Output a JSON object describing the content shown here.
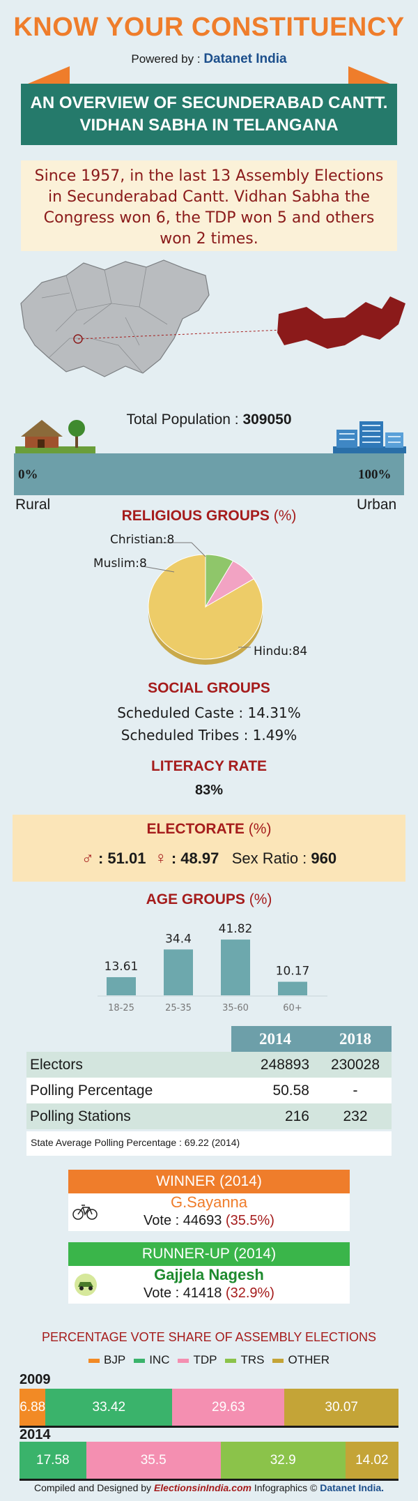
{
  "header": {
    "title": "KNOW YOUR CONSTITUENCY",
    "powered_prefix": "Powered by : ",
    "powered_brand": "Datanet India"
  },
  "banner": {
    "line1": "AN OVERVIEW OF SECUNDERABAD CANTT.",
    "line2": "VIDHAN SABHA IN TELANGANA"
  },
  "intro": "Since 1957, in the last 13 Assembly Elections in Secunderabad Cantt. Vidhan Sabha the Congress won 6, the TDP won 5 and others won 2 times.",
  "population": {
    "label": "Total Population : ",
    "value": "309050",
    "rural_pct": "0%",
    "urban_pct": "100%",
    "urban_fraction": 1.0,
    "rural_label": "Rural",
    "urban_label": "Urban"
  },
  "religious": {
    "title": "RELIGIOUS GROUPS",
    "unit": "(%)",
    "labels": [
      "Christian:8",
      "Muslim:8",
      "Hindu:84"
    ]
  },
  "social": {
    "title": "SOCIAL GROUPS",
    "sc": "Scheduled Caste :   14.31%",
    "st": "Scheduled Tribes :   1.49%"
  },
  "literacy": {
    "title": "LITERACY RATE",
    "value": "83%"
  },
  "electorate": {
    "title": "ELECTORATE",
    "unit": "(%)",
    "male": ": 51.01",
    "female": ": 48.97",
    "sex_ratio_label": "Sex Ratio : ",
    "sex_ratio": "960"
  },
  "age": {
    "title": "AGE GROUPS",
    "unit": "(%)"
  },
  "chart_data": [
    {
      "type": "pie",
      "categories": [
        "Hindu",
        "Muslim",
        "Christian"
      ],
      "values": [
        84,
        8,
        8
      ]
    },
    {
      "type": "bar",
      "categories": [
        "18-25",
        "25-35",
        "35-60",
        "60+"
      ],
      "values": [
        13.61,
        34.4,
        41.82,
        10.17
      ]
    },
    {
      "type": "bar",
      "categories": [
        "2009",
        "2014"
      ],
      "series": [
        {
          "name": "BJP",
          "values": [
            6.88,
            0
          ]
        },
        {
          "name": "INC",
          "values": [
            33.42,
            17.58
          ]
        },
        {
          "name": "TDP",
          "values": [
            29.63,
            35.5
          ]
        },
        {
          "name": "TRS",
          "values": [
            0,
            32.9
          ]
        },
        {
          "name": "OTHER",
          "values": [
            30.07,
            14.02
          ]
        }
      ]
    }
  ],
  "pie_colors": [
    "#edcc68",
    "#8fc66a",
    "#f2a3c3"
  ],
  "age_bar_color": "#6da8ad",
  "table": {
    "headers": [
      "2014",
      "2018"
    ],
    "rows": [
      {
        "label": "Electors",
        "v2014": "248893",
        "v2018": "230028"
      },
      {
        "label": "Polling Percentage",
        "v2014": "50.58",
        "v2018": "-"
      },
      {
        "label": "Polling Stations",
        "v2014": "216",
        "v2018": "232"
      }
    ],
    "note": "State Average Polling Percentage : 69.22 (2014)"
  },
  "winner": {
    "title": "WINNER",
    "year": "(2014)",
    "name": "G.Sayanna",
    "vote_label": "Vote : 44693 ",
    "vote_pct": "(35.5%)",
    "icon": "bicycle-icon",
    "color": "#ef7d2b"
  },
  "runner": {
    "title": "RUNNER-UP",
    "year": "(2014)",
    "name": "Gajjela Nagesh",
    "vote_label": "Vote : 41418 ",
    "vote_pct": "(32.9%)",
    "icon": "car-icon",
    "color": "#3ab54a"
  },
  "vote_share": {
    "title": "PERCENTAGE VOTE SHARE OF ASSEMBLY ELECTIONS",
    "legend": [
      "BJP",
      "INC",
      "TDP",
      "TRS",
      "OTHER"
    ],
    "colors": {
      "BJP": "#f28a25",
      "INC": "#3ab36b",
      "TDP": "#f48fb1",
      "TRS": "#8bc34a",
      "OTHER": "#c4a437"
    },
    "year1": "2009",
    "year2": "2014",
    "bar2009": [
      {
        "party": "BJP",
        "label": "6.88",
        "value": 6.88
      },
      {
        "party": "INC",
        "label": "33.42",
        "value": 33.42
      },
      {
        "party": "TDP",
        "label": "29.63",
        "value": 29.63
      },
      {
        "party": "OTHER",
        "label": "30.07",
        "value": 30.07
      }
    ],
    "bar2014": [
      {
        "party": "INC",
        "label": "17.58",
        "value": 17.58
      },
      {
        "party": "TDP",
        "label": "35.5",
        "value": 35.5
      },
      {
        "party": "TRS",
        "label": "32.9",
        "value": 32.9
      },
      {
        "party": "OTHER",
        "label": "14.02",
        "value": 14.02
      }
    ]
  },
  "footer": {
    "prefix": "Compiled and Designed by ",
    "site": "ElectionsinIndia.com",
    "mid": " Infographics © ",
    "brand": "Datanet India."
  }
}
